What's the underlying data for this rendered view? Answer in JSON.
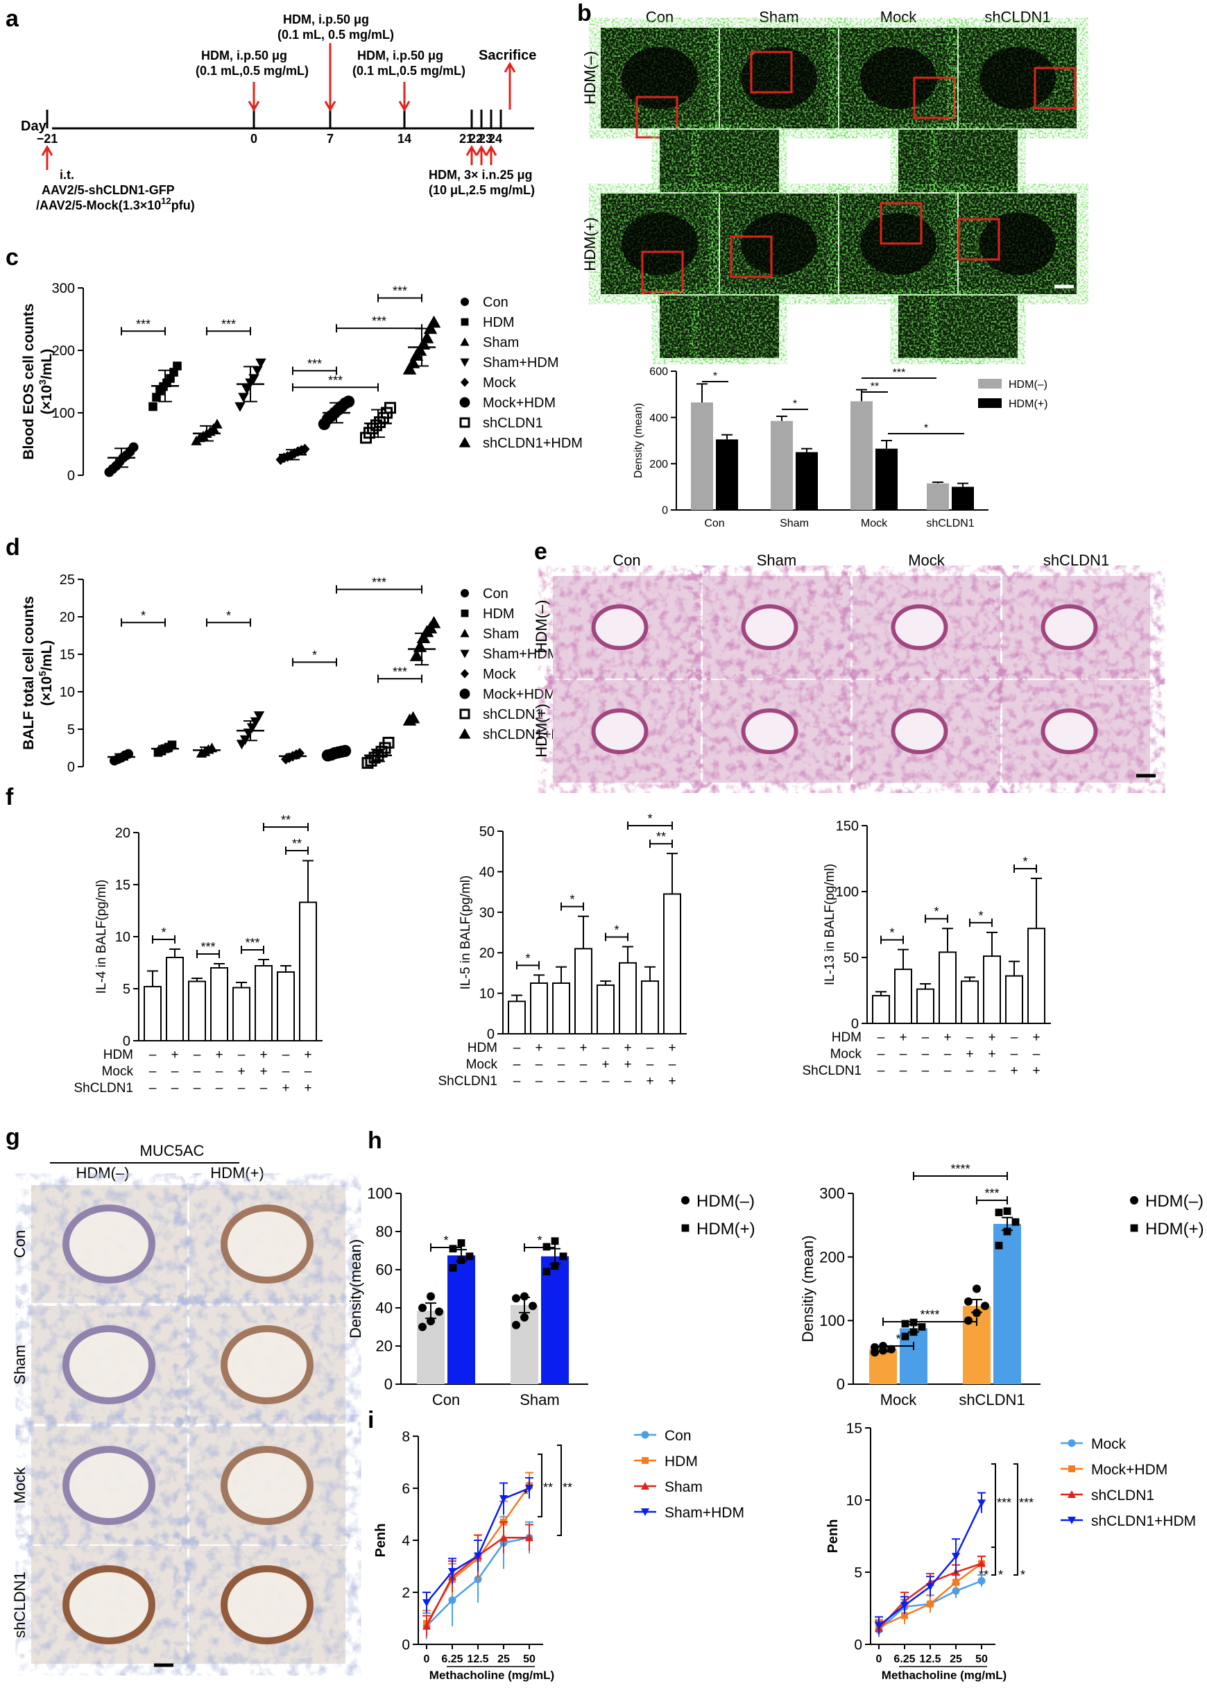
{
  "panels": {
    "a": "a",
    "b": "b",
    "c": "c",
    "d": "d",
    "e": "e",
    "f": "f",
    "g": "g",
    "h": "h",
    "i": "i"
  },
  "timeline": {
    "day_label": "Day",
    "days": [
      "-21",
      "0",
      "7",
      "14",
      "21",
      "22",
      "23",
      "24"
    ],
    "iti_1": "i.t.",
    "iti_2": "AAV2/5-shCLDN1-GFP",
    "iti_3": "/AAV2/5-Mock(1.3×10",
    "iti_3_sup": "12",
    "iti_3_end": "pfu)",
    "ip_1": "HDM, i.p.50 μg",
    "ip_2": "(0.1 mL,0.5 mg/mL)",
    "ip7_1": "HDM, i.p.50 μg",
    "ip7_2": "(0.1 mL, 0.5 mg/mL)",
    "ip14_1": "HDM, i.p.50 μg",
    "ip14_2": "(0.1 mL,0.5 mg/mL)",
    "sacrifice": "Sacrifice",
    "in_1": "HDM, 3× i.n.25 μg",
    "in_2": "(10 μL,2.5 mg/mL)"
  },
  "colors": {
    "red": "#e0241c",
    "green_bg": "#0b1a06",
    "green_fg": "#3f9a2a",
    "he_bg": "#e8cfe0",
    "ihc_bg": "#e9e2dc",
    "gray": "#a8a8a8",
    "blue": "#0a1ef0",
    "lightgray": "#d4d4d4",
    "orange": "#f7a23a",
    "lightblue": "#4a9fe8"
  },
  "panel_b": {
    "cols": [
      "Con",
      "Sham",
      "Mock",
      "shCLDN1"
    ],
    "rows": [
      "HDM(–)",
      "HDM(+)"
    ],
    "scale_bar_icon": "scale-bar"
  },
  "panel_e": {
    "cols": [
      "Con",
      "Sham",
      "Mock",
      "shCLDN1"
    ],
    "rows": [
      "HDM(–)",
      "HDM(+)"
    ]
  },
  "panel_g": {
    "title": "MUC5AC",
    "cols": [
      "HDM(–)",
      "HDM(+)"
    ],
    "rows": [
      "Con",
      "Sham",
      "Mock",
      "shCLDN1"
    ]
  },
  "legend_cd": [
    "Con",
    "HDM",
    "Sham",
    "Sham+HDM",
    "Mock",
    "Mock+HDM",
    "shCLDN1",
    "shCLDN1+HDM"
  ],
  "chart_data": [
    {
      "id": "c",
      "type": "scatter",
      "ylabel_1": "Blood EOS cell counts",
      "ylabel_2": "(×10",
      "ylabel_sup": "3",
      "ylabel_end": "/mL)",
      "ylim": [
        0,
        300
      ],
      "yticks": [
        "0",
        "100",
        "200",
        "300"
      ],
      "series": [
        {
          "name": "Con",
          "mean": 28,
          "sd": 15,
          "points": [
            5,
            10,
            15,
            22,
            28,
            32,
            38,
            45
          ]
        },
        {
          "name": "HDM",
          "mean": 143,
          "sd": 25,
          "points": [
            110,
            125,
            135,
            142,
            148,
            155,
            165,
            175
          ]
        },
        {
          "name": "Sham",
          "mean": 67,
          "sd": 12,
          "points": [
            55,
            60,
            63,
            67,
            70,
            75,
            82
          ]
        },
        {
          "name": "Sham+HDM",
          "mean": 146,
          "sd": 28,
          "points": [
            110,
            125,
            138,
            148,
            155,
            168,
            180
          ]
        },
        {
          "name": "Mock",
          "mean": 33,
          "sd": 8,
          "points": [
            25,
            28,
            30,
            32,
            35,
            38,
            40,
            42
          ]
        },
        {
          "name": "Mock+HDM",
          "mean": 100,
          "sd": 16,
          "points": [
            82,
            90,
            95,
            100,
            105,
            110,
            115,
            118
          ]
        },
        {
          "name": "shCLDN1",
          "mean": 83,
          "sd": 22,
          "points": [
            60,
            68,
            75,
            80,
            85,
            92,
            100,
            108
          ]
        },
        {
          "name": "shCLDN1+HDM",
          "mean": 205,
          "sd": 30,
          "points": [
            170,
            180,
            192,
            200,
            210,
            220,
            235,
            245
          ]
        }
      ],
      "sig": [
        {
          "from": 0,
          "to": 1,
          "y": 265,
          "label": "***"
        },
        {
          "from": 2,
          "to": 3,
          "y": 265,
          "label": "***"
        },
        {
          "from": 4,
          "to": 5,
          "y": 220,
          "label": "***"
        },
        {
          "from": 4,
          "to": 6,
          "y": 155,
          "label": "***"
        },
        {
          "from": 6,
          "to": 7,
          "y": 87,
          "label": "***"
        },
        {
          "from": 5,
          "to": 7,
          "y": 45,
          "label": "***"
        }
      ]
    },
    {
      "id": "d",
      "type": "scatter",
      "ylabel_1": "BALF total cell counts",
      "ylabel_2": "(×10",
      "ylabel_sup": "5",
      "ylabel_end": "/mL)",
      "ylim": [
        0,
        25
      ],
      "yticks": [
        "0",
        "5",
        "10",
        "15",
        "20",
        "25"
      ],
      "series": [
        {
          "name": "Con",
          "mean": 1.3,
          "sd": 0.4,
          "points": [
            0.8,
            1.0,
            1.2,
            1.5,
            1.7
          ]
        },
        {
          "name": "HDM",
          "mean": 2.4,
          "sd": 0.4,
          "points": [
            1.9,
            2.1,
            2.4,
            2.6,
            2.9
          ]
        },
        {
          "name": "Sham",
          "mean": 2.2,
          "sd": 0.4,
          "points": [
            1.8,
            2.0,
            2.3,
            2.5
          ]
        },
        {
          "name": "Sham+HDM",
          "mean": 4.8,
          "sd": 1.3,
          "points": [
            3.0,
            3.6,
            4.5,
            5.2,
            6.0,
            6.8
          ]
        },
        {
          "name": "Mock",
          "mean": 1.4,
          "sd": 0.3,
          "points": [
            1.0,
            1.2,
            1.4,
            1.6,
            1.8
          ]
        },
        {
          "name": "Mock+HDM",
          "mean": 1.8,
          "sd": 0.3,
          "points": [
            1.5,
            1.6,
            1.8,
            1.9,
            2.0,
            2.1
          ]
        },
        {
          "name": "shCLDN1",
          "mean": 1.5,
          "sd": 0.8,
          "points": [
            0.5,
            0.8,
            1.2,
            1.5,
            2.0,
            2.5,
            3.2
          ]
        },
        {
          "name": "shCLDN1+HDM",
          "mean": 15.7,
          "sd": 2.1,
          "points": [
            6.2,
            6.5,
            14.8,
            16.0,
            17.2,
            18.0,
            18.5,
            19.2
          ]
        }
      ],
      "sig": [
        {
          "from": 0,
          "to": 1,
          "y": 25,
          "label": "*"
        },
        {
          "from": 2,
          "to": 3,
          "y": 25,
          "label": "*"
        },
        {
          "from": 4,
          "to": 5,
          "y": 24,
          "label": "*"
        },
        {
          "from": 6,
          "to": 7,
          "y": 20.5,
          "label": "***"
        },
        {
          "from": 5,
          "to": 7,
          "y": 20,
          "label": "***"
        }
      ]
    },
    {
      "id": "b-density",
      "type": "bar",
      "ylabel": "Density (mean)",
      "ylim": [
        0,
        600
      ],
      "yticks": [
        "0",
        "200",
        "400",
        "600"
      ],
      "categories": [
        "Con",
        "Sham",
        "Mock",
        "shCLDN1"
      ],
      "series": [
        {
          "name": "HDM(–)",
          "values": [
            465,
            385,
            470,
            115
          ],
          "err": [
            80,
            20,
            50,
            5
          ]
        },
        {
          "name": "HDM(+)",
          "values": [
            305,
            250,
            265,
            100
          ],
          "err": [
            20,
            15,
            35,
            15
          ]
        }
      ],
      "sig": [
        "*",
        "*",
        "**",
        "***",
        "*"
      ]
    },
    {
      "id": "f1",
      "type": "bar",
      "ylabel": "IL-4 in BALF(pg/ml)",
      "ylim": [
        0,
        20
      ],
      "yticks": [
        "0",
        "5",
        "10",
        "15",
        "20"
      ],
      "values": [
        5.2,
        8.0,
        5.7,
        7.0,
        5.1,
        7.2,
        6.6,
        13.3
      ],
      "err": [
        1.5,
        0.8,
        0.3,
        0.4,
        0.5,
        0.6,
        0.6,
        4.0
      ],
      "sig": [
        "*",
        "***",
        "***",
        "**",
        "**"
      ]
    },
    {
      "id": "f2",
      "type": "bar",
      "ylabel": "IL-5 in BALF(pg/ml)",
      "ylim": [
        0,
        50
      ],
      "yticks": [
        "0",
        "10",
        "20",
        "30",
        "40",
        "50"
      ],
      "values": [
        8,
        12.5,
        12.5,
        21,
        12,
        17.5,
        13,
        34.5
      ],
      "err": [
        1.5,
        2.0,
        4.0,
        8.0,
        1.0,
        4.0,
        3.5,
        10.0
      ],
      "sig": [
        "*",
        "*",
        "*",
        "**",
        "*"
      ]
    },
    {
      "id": "f3",
      "type": "bar",
      "ylabel": "IL-13 in BALF(pg/ml)",
      "ylim": [
        0,
        150
      ],
      "yticks": [
        "0",
        "50",
        "100",
        "150"
      ],
      "values": [
        21,
        41,
        26,
        54,
        32,
        51,
        36,
        72
      ],
      "err": [
        3,
        15,
        4,
        18,
        3,
        18,
        11,
        38
      ],
      "sig": [
        "*",
        "*",
        "*",
        "*"
      ]
    },
    {
      "id": "h1",
      "type": "bar",
      "ylabel": "Density(mean)",
      "ylim": [
        0,
        100
      ],
      "yticks": [
        "0",
        "20",
        "40",
        "60",
        "80",
        "100"
      ],
      "categories": [
        "Con",
        "Sham"
      ],
      "series": [
        {
          "name": "HDM(–)",
          "values": [
            38.5,
            41.5
          ],
          "err": [
            4,
            4
          ],
          "points": [
            [
              30,
              33,
              38,
              40,
              46
            ],
            [
              31,
              35,
              41,
              45,
              46
            ]
          ]
        },
        {
          "name": "HDM(+)",
          "values": [
            67.5,
            67
          ],
          "err": [
            3,
            4
          ],
          "points": [
            [
              61,
              65,
              67,
              71,
              74
            ],
            [
              59,
              62,
              67,
              72,
              75
            ]
          ]
        }
      ],
      "sig": [
        "*",
        "*"
      ]
    },
    {
      "id": "h2",
      "type": "bar",
      "ylabel": "Densitiy (mean)",
      "ylim": [
        0,
        300
      ],
      "yticks": [
        "0",
        "100",
        "200",
        "300"
      ],
      "categories": [
        "Mock",
        "shCLDN1"
      ],
      "series": [
        {
          "name": "HDM(–)",
          "values": [
            55,
            123
          ],
          "err": [
            4,
            10
          ],
          "points": [
            [
              50,
              53,
              55,
              58,
              60
            ],
            [
              100,
              112,
              123,
              130,
              150
            ]
          ]
        },
        {
          "name": "HDM(+)",
          "values": [
            88,
            252
          ],
          "err": [
            6,
            10
          ],
          "points": [
            [
              75,
              82,
              90,
              95,
              97
            ],
            [
              218,
              240,
              255,
              270,
              272
            ]
          ]
        }
      ],
      "sig": [
        "*",
        "****",
        "***",
        "****"
      ]
    },
    {
      "id": "i1",
      "type": "line",
      "xlabel": "Methacholine (mg/mL)",
      "ylabel": "Penh",
      "x": [
        "0",
        "6.25",
        "12.5",
        "25",
        "50"
      ],
      "ylim": [
        0,
        8
      ],
      "yticks": [
        "0",
        "2",
        "4",
        "6",
        "8"
      ],
      "series": [
        {
          "name": "Con",
          "values": [
            0.7,
            1.7,
            2.5,
            3.9,
            4.1
          ],
          "err": [
            0.5,
            1.0,
            0.9,
            1.0,
            0.6
          ]
        },
        {
          "name": "HDM",
          "values": [
            0.8,
            2.5,
            3.3,
            4.7,
            6.1
          ],
          "err": [
            0.5,
            0.6,
            0.9,
            0.8,
            0.5
          ]
        },
        {
          "name": "Sham",
          "values": [
            0.7,
            2.6,
            3.4,
            4.1,
            4.1
          ],
          "err": [
            0.4,
            0.6,
            0.8,
            0.6,
            0.5
          ]
        },
        {
          "name": "Sham+HDM",
          "values": [
            1.6,
            2.8,
            3.4,
            5.6,
            6.0
          ],
          "err": [
            0.4,
            0.5,
            0.6,
            0.6,
            0.4
          ]
        }
      ],
      "sig": [
        "*",
        "**",
        "**"
      ]
    },
    {
      "id": "i2",
      "type": "line",
      "xlabel": "Methacholine (mg/mL)",
      "ylabel": "Penh",
      "x": [
        "0",
        "6.25",
        "12.5",
        "25",
        "50"
      ],
      "ylim": [
        0,
        15
      ],
      "yticks": [
        "0",
        "5",
        "10",
        "15"
      ],
      "series": [
        {
          "name": "Mock",
          "values": [
            1.0,
            2.6,
            2.8,
            3.7,
            4.4
          ],
          "err": [
            0.5,
            0.5,
            0.6,
            0.5,
            0.4
          ]
        },
        {
          "name": "Mock+HDM",
          "values": [
            1.2,
            2.0,
            2.8,
            4.3,
            5.6
          ],
          "err": [
            0.5,
            0.6,
            0.6,
            0.5,
            0.5
          ]
        },
        {
          "name": "shCLDN1",
          "values": [
            1.1,
            3.0,
            4.3,
            5.0,
            5.6
          ],
          "err": [
            0.5,
            0.6,
            0.6,
            0.5,
            0.5
          ]
        },
        {
          "name": "shCLDN1+HDM",
          "values": [
            1.3,
            2.7,
            4.0,
            6.1,
            9.8
          ],
          "err": [
            0.6,
            0.6,
            0.7,
            1.2,
            0.7
          ]
        }
      ],
      "sig": [
        "***",
        "***",
        "**",
        "*",
        "*"
      ]
    }
  ],
  "f_rows": {
    "labels": [
      "HDM",
      "Mock",
      "ShCLDN1"
    ],
    "HDM": [
      "–",
      "+",
      "–",
      "+",
      "–",
      "+",
      "–",
      "+"
    ],
    "Mock": [
      "–",
      "–",
      "–",
      "–",
      "+",
      "+",
      "–",
      "–"
    ],
    "ShCLDN1": [
      "–",
      "–",
      "–",
      "–",
      "–",
      "–",
      "+",
      "+"
    ]
  }
}
